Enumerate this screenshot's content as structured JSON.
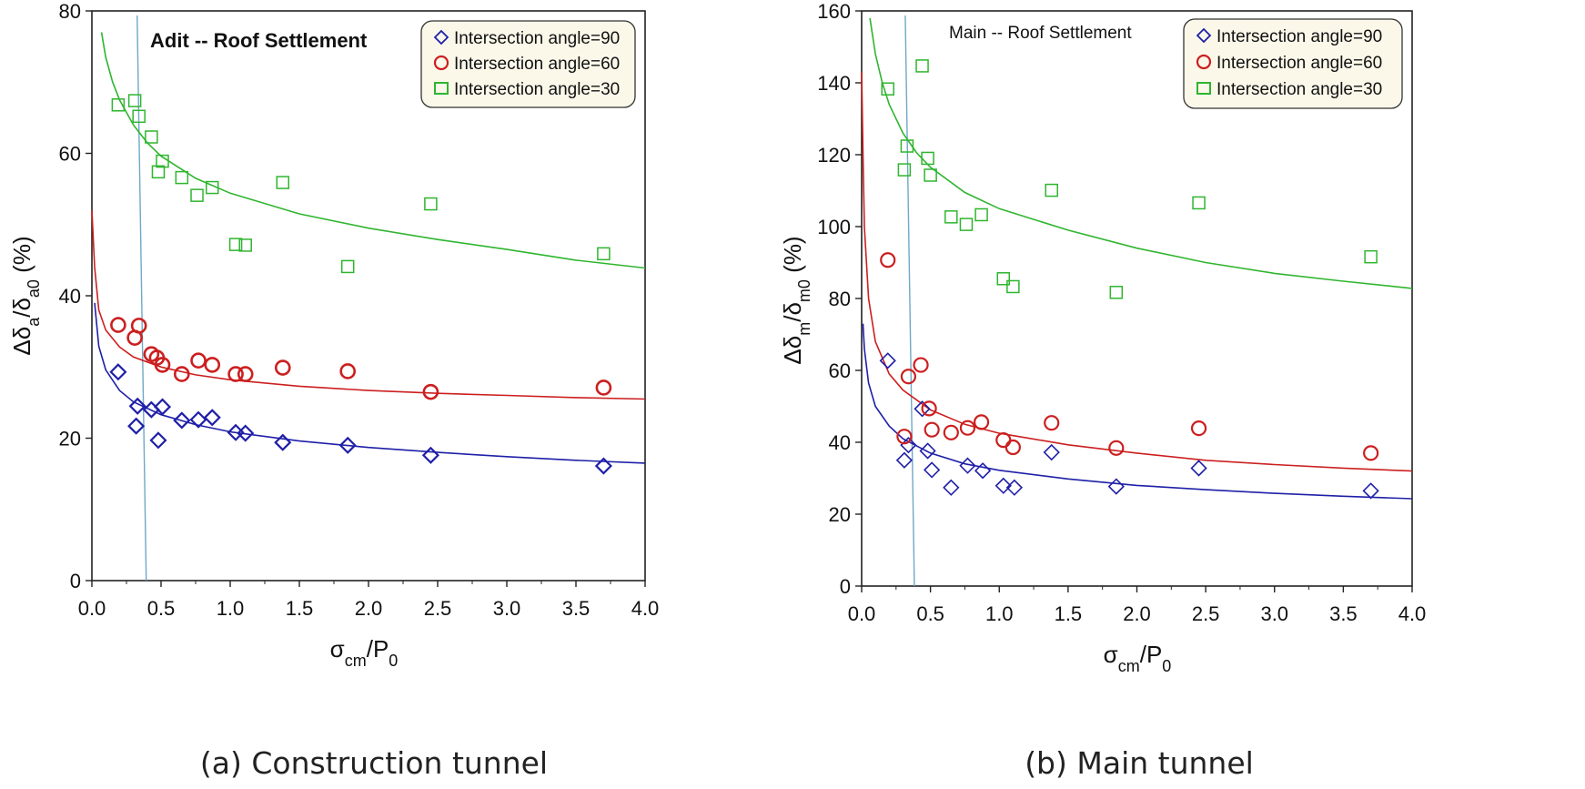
{
  "chart_data": [
    {
      "type": "scatter",
      "title": "Adit -- Roof Settlement",
      "caption": "(a) Construction tunnel",
      "xlabel": "σcm/P0",
      "ylabel": "Δδa/δa0 (%)",
      "xlim": [
        0,
        4
      ],
      "ylim": [
        0,
        80
      ],
      "xticks": [
        "0.0",
        "0.5",
        "1.0",
        "1.5",
        "2.0",
        "2.5",
        "3.0",
        "3.5",
        "4.0"
      ],
      "yticks": [
        "0",
        "20",
        "40",
        "60",
        "80"
      ],
      "legend_position": "top-right",
      "reference_line_x": 0.36,
      "series": [
        {
          "name": "Intersection angle=90",
          "color": "#1f1fa8",
          "marker": "diamond",
          "points": [
            [
              0.19,
              29.3
            ],
            [
              0.32,
              21.7
            ],
            [
              0.33,
              24.5
            ],
            [
              0.43,
              24.0
            ],
            [
              0.48,
              19.7
            ],
            [
              0.51,
              24.4
            ],
            [
              0.65,
              22.5
            ],
            [
              0.77,
              22.6
            ],
            [
              0.87,
              22.9
            ],
            [
              1.04,
              20.8
            ],
            [
              1.11,
              20.7
            ],
            [
              1.38,
              19.4
            ],
            [
              1.85,
              19.0
            ],
            [
              2.45,
              17.6
            ],
            [
              3.7,
              16.1
            ]
          ],
          "fit": [
            [
              0.02,
              39.0
            ],
            [
              0.05,
              32.9
            ],
            [
              0.1,
              29.6
            ],
            [
              0.2,
              26.7
            ],
            [
              0.3,
              25.1
            ],
            [
              0.5,
              23.3
            ],
            [
              0.75,
              21.9
            ],
            [
              1.0,
              20.9
            ],
            [
              1.5,
              19.6
            ],
            [
              2.0,
              18.7
            ],
            [
              2.5,
              18.0
            ],
            [
              3.0,
              17.4
            ],
            [
              3.5,
              16.9
            ],
            [
              4.0,
              16.5
            ]
          ]
        },
        {
          "name": "Intersection angle=60",
          "color": "#cc1f1f",
          "marker": "circle",
          "points": [
            [
              0.19,
              35.9
            ],
            [
              0.31,
              34.1
            ],
            [
              0.34,
              35.8
            ],
            [
              0.43,
              31.8
            ],
            [
              0.47,
              31.3
            ],
            [
              0.51,
              30.3
            ],
            [
              0.65,
              29.0
            ],
            [
              0.77,
              30.9
            ],
            [
              0.87,
              30.3
            ],
            [
              1.04,
              29.0
            ],
            [
              1.11,
              29.0
            ],
            [
              1.38,
              29.9
            ],
            [
              1.85,
              29.4
            ],
            [
              2.45,
              26.5
            ],
            [
              3.7,
              27.1
            ]
          ],
          "fit": [
            [
              0.0,
              52.0
            ],
            [
              0.02,
              44.0
            ],
            [
              0.05,
              38.0
            ],
            [
              0.1,
              35.2
            ],
            [
              0.2,
              32.8
            ],
            [
              0.3,
              31.4
            ],
            [
              0.5,
              30.0
            ],
            [
              0.75,
              28.9
            ],
            [
              1.0,
              28.2
            ],
            [
              1.5,
              27.3
            ],
            [
              2.0,
              26.7
            ],
            [
              2.5,
              26.3
            ],
            [
              3.0,
              26.0
            ],
            [
              3.5,
              25.7
            ],
            [
              4.0,
              25.5
            ]
          ]
        },
        {
          "name": "Intersection angle=30",
          "color": "#2fb52f",
          "marker": "square",
          "points": [
            [
              0.19,
              66.8
            ],
            [
              0.31,
              67.4
            ],
            [
              0.34,
              65.2
            ],
            [
              0.43,
              62.3
            ],
            [
              0.48,
              57.4
            ],
            [
              0.51,
              58.9
            ],
            [
              0.65,
              56.6
            ],
            [
              0.76,
              54.1
            ],
            [
              0.87,
              55.2
            ],
            [
              1.04,
              47.2
            ],
            [
              1.11,
              47.1
            ],
            [
              1.38,
              55.9
            ],
            [
              1.85,
              44.1
            ],
            [
              2.45,
              52.9
            ],
            [
              3.7,
              45.9
            ]
          ],
          "fit": [
            [
              0.07,
              77.0
            ],
            [
              0.1,
              73.5
            ],
            [
              0.15,
              70.0
            ],
            [
              0.2,
              67.5
            ],
            [
              0.3,
              64.0
            ],
            [
              0.4,
              61.5
            ],
            [
              0.5,
              59.6
            ],
            [
              0.75,
              56.5
            ],
            [
              1.0,
              54.4
            ],
            [
              1.5,
              51.5
            ],
            [
              2.0,
              49.5
            ],
            [
              2.5,
              47.9
            ],
            [
              3.0,
              46.5
            ],
            [
              3.5,
              45.0
            ],
            [
              4.0,
              43.9
            ]
          ]
        }
      ]
    },
    {
      "type": "scatter",
      "title": "Main -- Roof Settlement",
      "caption": "(b) Main tunnel",
      "xlabel": "σcm/P0",
      "ylabel": "Δδm/δm0 (%)",
      "xlim": [
        0,
        4
      ],
      "ylim": [
        0,
        160
      ],
      "xticks": [
        "0.0",
        "0.5",
        "1.0",
        "1.5",
        "2.0",
        "2.5",
        "3.0",
        "3.5",
        "4.0"
      ],
      "yticks": [
        "0",
        "20",
        "40",
        "60",
        "80",
        "100",
        "120",
        "140",
        "160"
      ],
      "legend_position": "top-right",
      "reference_line_x": 0.35,
      "series": [
        {
          "name": "Intersection angle=90",
          "color": "#1f1fa8",
          "marker": "diamond",
          "points": [
            [
              0.19,
              62.7
            ],
            [
              0.31,
              35.0
            ],
            [
              0.34,
              39.2
            ],
            [
              0.44,
              49.3
            ],
            [
              0.48,
              37.6
            ],
            [
              0.51,
              32.3
            ],
            [
              0.65,
              27.4
            ],
            [
              0.77,
              33.5
            ],
            [
              0.88,
              32.1
            ],
            [
              1.03,
              27.9
            ],
            [
              1.11,
              27.4
            ],
            [
              1.38,
              37.2
            ],
            [
              1.85,
              27.7
            ],
            [
              2.45,
              32.8
            ],
            [
              3.7,
              26.5
            ]
          ],
          "fit": [
            [
              0.01,
              73.0
            ],
            [
              0.02,
              66.0
            ],
            [
              0.05,
              56.5
            ],
            [
              0.1,
              50.0
            ],
            [
              0.2,
              44.5
            ],
            [
              0.3,
              41.0
            ],
            [
              0.5,
              37.0
            ],
            [
              0.75,
              34.0
            ],
            [
              1.0,
              32.2
            ],
            [
              1.5,
              29.8
            ],
            [
              2.0,
              28.0
            ],
            [
              2.5,
              26.8
            ],
            [
              3.0,
              25.8
            ],
            [
              3.5,
              25.0
            ],
            [
              4.0,
              24.3
            ]
          ]
        },
        {
          "name": "Intersection angle=60",
          "color": "#cc1f1f",
          "marker": "circle",
          "points": [
            [
              0.19,
              90.7
            ],
            [
              0.31,
              41.6
            ],
            [
              0.34,
              58.3
            ],
            [
              0.43,
              61.5
            ],
            [
              0.49,
              49.4
            ],
            [
              0.51,
              43.5
            ],
            [
              0.65,
              42.7
            ],
            [
              0.77,
              44.0
            ],
            [
              0.87,
              45.6
            ],
            [
              1.03,
              40.6
            ],
            [
              1.1,
              38.6
            ],
            [
              1.38,
              45.4
            ],
            [
              1.85,
              38.4
            ],
            [
              2.45,
              43.9
            ],
            [
              3.7,
              37.0
            ]
          ],
          "fit": [
            [
              0.0,
              143.0
            ],
            [
              0.01,
              120.0
            ],
            [
              0.02,
              100.0
            ],
            [
              0.05,
              80.0
            ],
            [
              0.1,
              68.0
            ],
            [
              0.2,
              59.0
            ],
            [
              0.3,
              54.5
            ],
            [
              0.5,
              49.0
            ],
            [
              0.75,
              45.0
            ],
            [
              1.0,
              42.5
            ],
            [
              1.5,
              39.3
            ],
            [
              2.0,
              37.0
            ],
            [
              2.5,
              35.0
            ],
            [
              3.0,
              33.8
            ],
            [
              3.5,
              32.8
            ],
            [
              4.0,
              32.0
            ]
          ]
        },
        {
          "name": "Intersection angle=30",
          "color": "#2fb52f",
          "marker": "square",
          "points": [
            [
              0.19,
              138.3
            ],
            [
              0.31,
              115.8
            ],
            [
              0.33,
              122.4
            ],
            [
              0.44,
              144.7
            ],
            [
              0.48,
              119.0
            ],
            [
              0.5,
              114.3
            ],
            [
              0.65,
              102.7
            ],
            [
              0.76,
              100.6
            ],
            [
              0.87,
              103.3
            ],
            [
              1.03,
              85.5
            ],
            [
              1.1,
              83.3
            ],
            [
              1.38,
              110.1
            ],
            [
              1.85,
              81.7
            ],
            [
              2.45,
              106.6
            ],
            [
              3.7,
              91.6
            ]
          ],
          "fit": [
            [
              0.06,
              158.0
            ],
            [
              0.1,
              148.0
            ],
            [
              0.15,
              140.0
            ],
            [
              0.2,
              134.0
            ],
            [
              0.3,
              126.0
            ],
            [
              0.4,
              120.5
            ],
            [
              0.5,
              116.5
            ],
            [
              0.75,
              109.5
            ],
            [
              1.0,
              105.0
            ],
            [
              1.5,
              99.0
            ],
            [
              2.0,
              94.0
            ],
            [
              2.5,
              90.0
            ],
            [
              3.0,
              87.0
            ],
            [
              3.5,
              84.8
            ],
            [
              4.0,
              82.8
            ]
          ]
        }
      ]
    }
  ]
}
